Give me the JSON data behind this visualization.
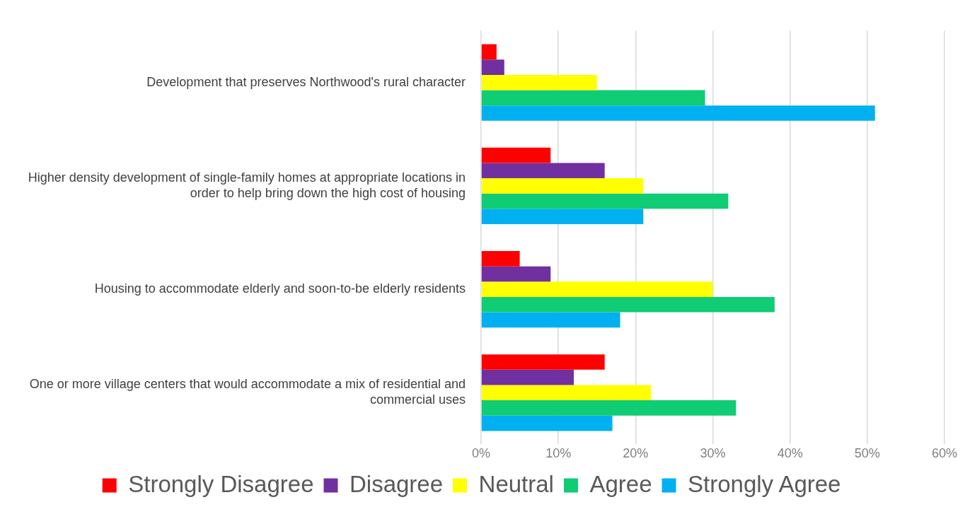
{
  "chart_data": {
    "type": "bar",
    "orientation": "horizontal",
    "categories": [
      "Development that preserves Northwood's rural character",
      "Higher density development of single-family homes at appropriate locations in order to help bring down the high cost of housing",
      "Housing to accommodate elderly and soon-to-be elderly residents",
      "One or more village centers that would accommodate a mix of residential and commercial uses"
    ],
    "series": [
      {
        "name": "Strongly Disagree",
        "color": "#ff0000",
        "values": [
          2,
          9,
          5,
          16
        ]
      },
      {
        "name": "Disagree",
        "color": "#7030a0",
        "values": [
          3,
          16,
          9,
          12
        ]
      },
      {
        "name": "Neutral",
        "color": "#ffff00",
        "values": [
          15,
          21,
          30,
          22
        ]
      },
      {
        "name": "Agree",
        "color": "#0fcc75",
        "values": [
          29,
          32,
          38,
          33
        ]
      },
      {
        "name": "Strongly Agree",
        "color": "#00b0f0",
        "values": [
          51,
          21,
          18,
          17
        ]
      }
    ],
    "xlim": [
      0,
      60
    ],
    "xticks": [
      {
        "value": 0,
        "label": "0%"
      },
      {
        "value": 10,
        "label": "10%"
      },
      {
        "value": 20,
        "label": "20%"
      },
      {
        "value": 30,
        "label": "30%"
      },
      {
        "value": 40,
        "label": "40%"
      },
      {
        "value": 50,
        "label": "50%"
      },
      {
        "value": 60,
        "label": "60%"
      }
    ],
    "grid": "x",
    "legend": "bottom"
  }
}
